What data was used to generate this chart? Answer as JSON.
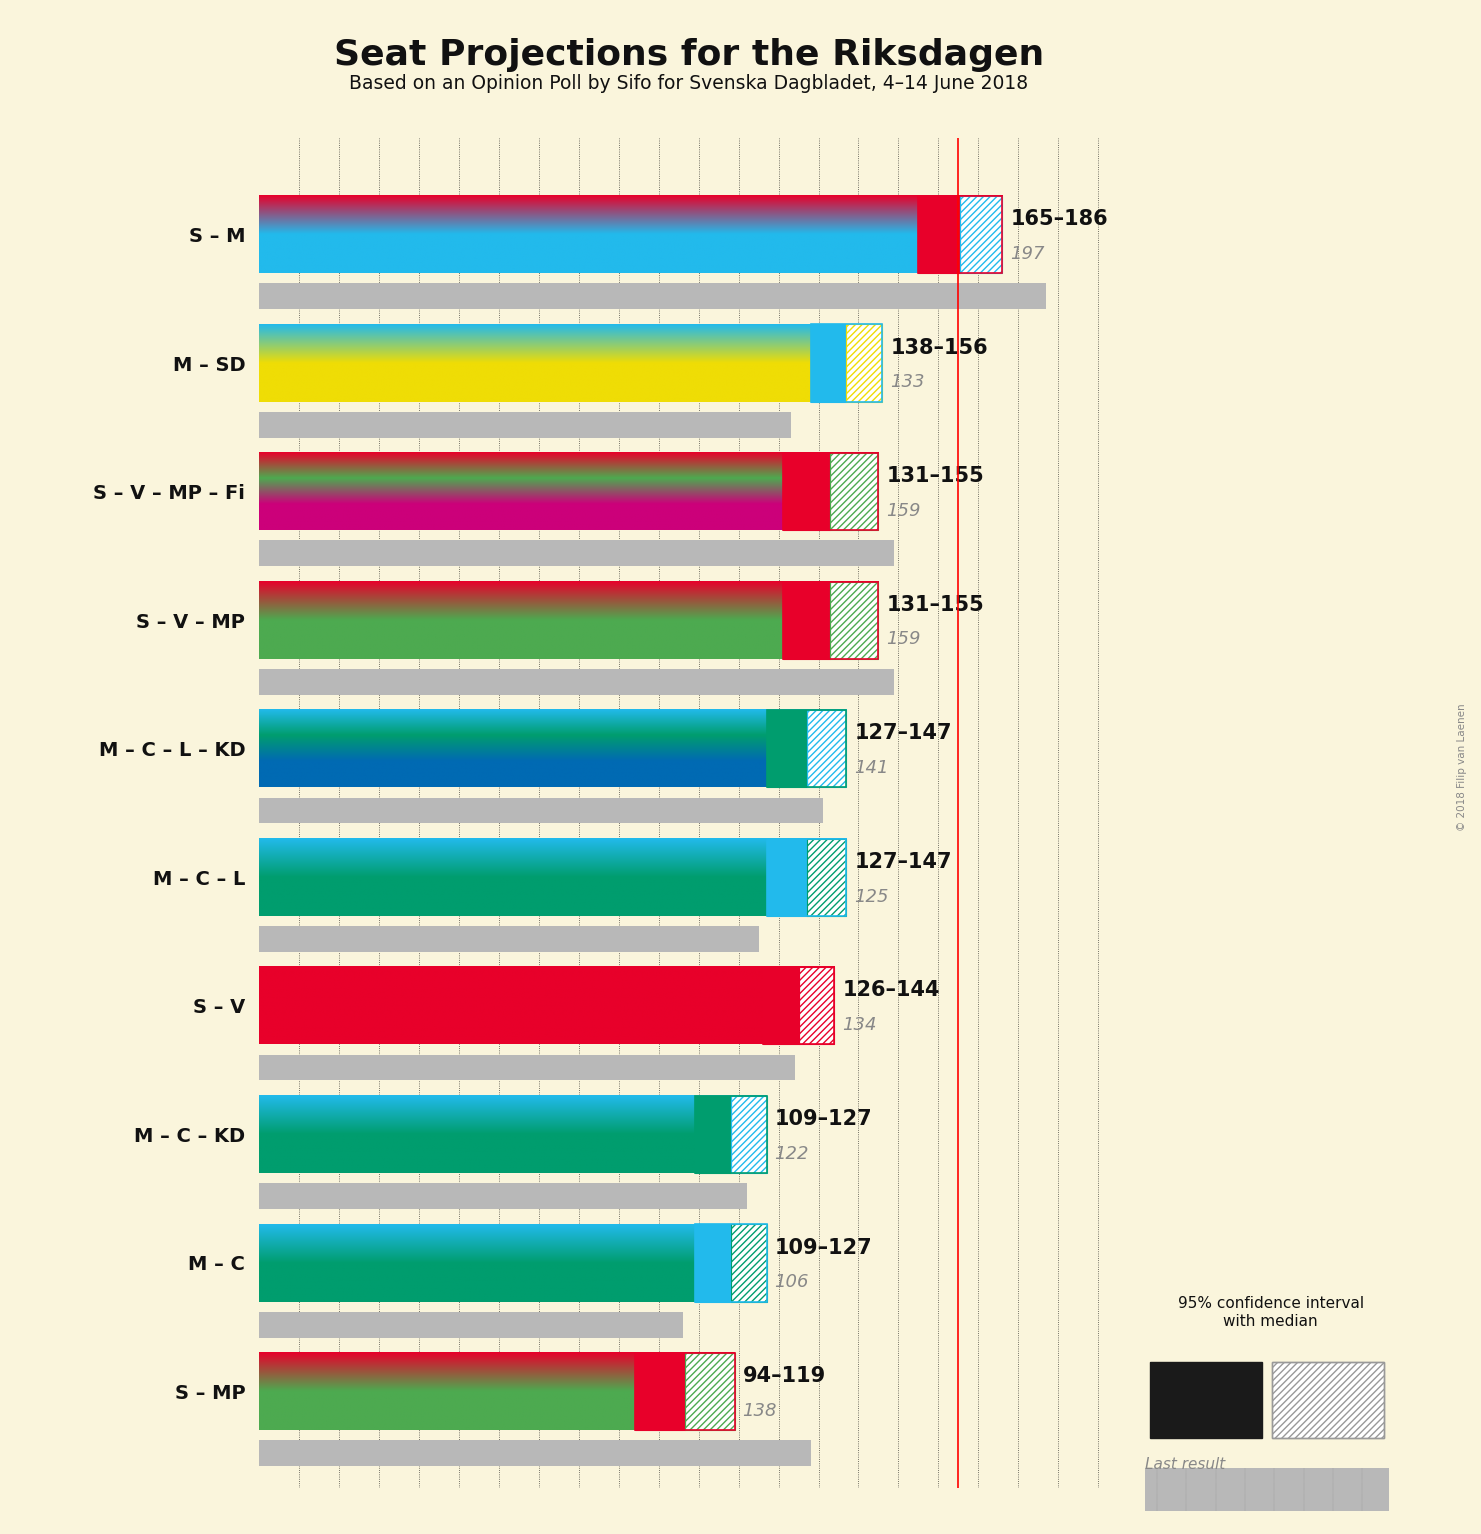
{
  "title": "Seat Projections for the Riksdagen",
  "subtitle": "Based on an Opinion Poll by Sifo for Svenska Dagbladet, 4–14 June 2018",
  "copyright": "© 2018 Filip van Laenen",
  "background_color": "#FAF5DC",
  "majority": 175,
  "x_max": 215,
  "coalitions": [
    {
      "label": "S – M",
      "low": 165,
      "high": 186,
      "last": 197,
      "parties": [
        {
          "color": "#E8002A"
        },
        {
          "color": "#22BAEC"
        }
      ],
      "ci_col1": "#E8002A",
      "ci_col2": "#22BAEC"
    },
    {
      "label": "M – SD",
      "low": 138,
      "high": 156,
      "last": 133,
      "parties": [
        {
          "color": "#22BAEC"
        },
        {
          "color": "#EFDD05"
        }
      ],
      "ci_col1": "#22BAEC",
      "ci_col2": "#EFDD05"
    },
    {
      "label": "S – V – MP – Fi",
      "low": 131,
      "high": 155,
      "last": 159,
      "parties": [
        {
          "color": "#E8002A"
        },
        {
          "color": "#4DAA50"
        },
        {
          "color": "#CC007A"
        }
      ],
      "ci_col1": "#E8002A",
      "ci_col2": "#4DAA50"
    },
    {
      "label": "S – V – MP",
      "low": 131,
      "high": 155,
      "last": 159,
      "parties": [
        {
          "color": "#E8002A"
        },
        {
          "color": "#4DAA50"
        }
      ],
      "ci_col1": "#E8002A",
      "ci_col2": "#4DAA50"
    },
    {
      "label": "M – C – L – KD",
      "low": 127,
      "high": 147,
      "last": 141,
      "parties": [
        {
          "color": "#22BAEC"
        },
        {
          "color": "#009D6E"
        },
        {
          "color": "#006AB3"
        }
      ],
      "ci_col1": "#009D6E",
      "ci_col2": "#22BAEC"
    },
    {
      "label": "M – C – L",
      "low": 127,
      "high": 147,
      "last": 125,
      "parties": [
        {
          "color": "#22BAEC"
        },
        {
          "color": "#009D6E"
        }
      ],
      "ci_col1": "#22BAEC",
      "ci_col2": "#009D6E"
    },
    {
      "label": "S – V",
      "low": 126,
      "high": 144,
      "last": 134,
      "parties": [
        {
          "color": "#E8002A"
        }
      ],
      "ci_col1": "#E8002A",
      "ci_col2": "#E8002A"
    },
    {
      "label": "M – C – KD",
      "low": 109,
      "high": 127,
      "last": 122,
      "parties": [
        {
          "color": "#22BAEC"
        },
        {
          "color": "#009D6E"
        }
      ],
      "ci_col1": "#009D6E",
      "ci_col2": "#22BAEC"
    },
    {
      "label": "M – C",
      "low": 109,
      "high": 127,
      "last": 106,
      "parties": [
        {
          "color": "#22BAEC"
        },
        {
          "color": "#009D6E"
        }
      ],
      "ci_col1": "#22BAEC",
      "ci_col2": "#009D6E"
    },
    {
      "label": "S – MP",
      "low": 94,
      "high": 119,
      "last": 138,
      "parties": [
        {
          "color": "#E8002A"
        },
        {
          "color": "#4DAA50"
        }
      ],
      "ci_col1": "#E8002A",
      "ci_col2": "#4DAA50"
    }
  ]
}
